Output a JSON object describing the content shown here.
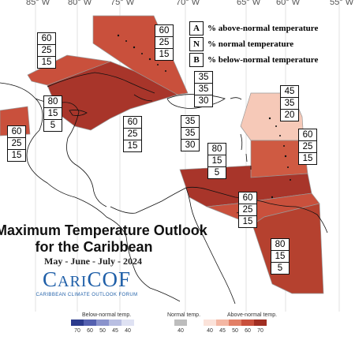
{
  "map": {
    "longitude_labels": [
      "85° W",
      "80° W",
      "75° W",
      "70° W",
      "65° W",
      "60° W",
      "55° W"
    ],
    "title_line1": "Maximum Temperature Outlook",
    "title_line2": "for the Caribbean",
    "period": "May - June - July - 2024",
    "logo": {
      "word_first": "C",
      "word_rest_small": "ARI",
      "word_cof": "COF",
      "subtitle": "CARIBBEAN CLIMATE OUTLOOK FORUM"
    }
  },
  "legend_key": [
    {
      "letter": "A",
      "text": "% above-normal temperature"
    },
    {
      "letter": "N",
      "text": "% normal temperature"
    },
    {
      "letter": "B",
      "text": "% below-normal temperature"
    }
  ],
  "regions": [
    {
      "id": "bahamas",
      "probs": [
        "60",
        "25",
        "15"
      ],
      "color": "#c9503c"
    },
    {
      "id": "cuba-west",
      "probs": [
        "60",
        "25",
        "15"
      ],
      "color": "#c9503c"
    },
    {
      "id": "cuba-east-jamaica",
      "probs": [
        "80",
        "15",
        "5"
      ],
      "color": "#a8352a"
    },
    {
      "id": "cayman-jamaica-label",
      "probs": [
        "60",
        "25",
        "15"
      ],
      "color": "#c9503c"
    },
    {
      "id": "hispaniola-north",
      "probs": [
        "35",
        "35",
        "30"
      ],
      "color": "#ffffff"
    },
    {
      "id": "hispaniola-south",
      "probs": [
        "35",
        "35",
        "30"
      ],
      "color": "#ffffff"
    },
    {
      "id": "leeward-north",
      "probs": [
        "45",
        "35",
        "20"
      ],
      "color": "#f6c9b8"
    },
    {
      "id": "leeward-south",
      "probs": [
        "60",
        "25",
        "15"
      ],
      "color": "#cf5a42"
    },
    {
      "id": "central-america-west",
      "probs": [
        "60",
        "25",
        "15"
      ],
      "color": "#d2604a"
    },
    {
      "id": "caribbean-south",
      "probs": [
        "80",
        "15",
        "5"
      ],
      "color": "#a8352a"
    },
    {
      "id": "windward",
      "probs": [
        "60",
        "25",
        "15"
      ],
      "color": "#c9503c"
    },
    {
      "id": "guianas",
      "probs": [
        "80",
        "15",
        "5"
      ],
      "color": "#b5412f"
    }
  ],
  "colorbar": {
    "below_label": "Below-normal temp.",
    "normal_label": "Normal temp.",
    "above_label": "Above-normal temp.",
    "below_ticks": [
      "70",
      "60",
      "50",
      "45",
      "40"
    ],
    "normal_tick": "40",
    "above_ticks": [
      "40",
      "45",
      "50",
      "60",
      "70"
    ],
    "below_colors": [
      "#2b3a8c",
      "#5561b0",
      "#8a93cc",
      "#b9bfe2",
      "#dfe2f3"
    ],
    "normal_color": "#bdbdbd",
    "above_colors": [
      "#fbe3da",
      "#f4b7a3",
      "#e27f66",
      "#c9503c",
      "#a02e22"
    ]
  }
}
